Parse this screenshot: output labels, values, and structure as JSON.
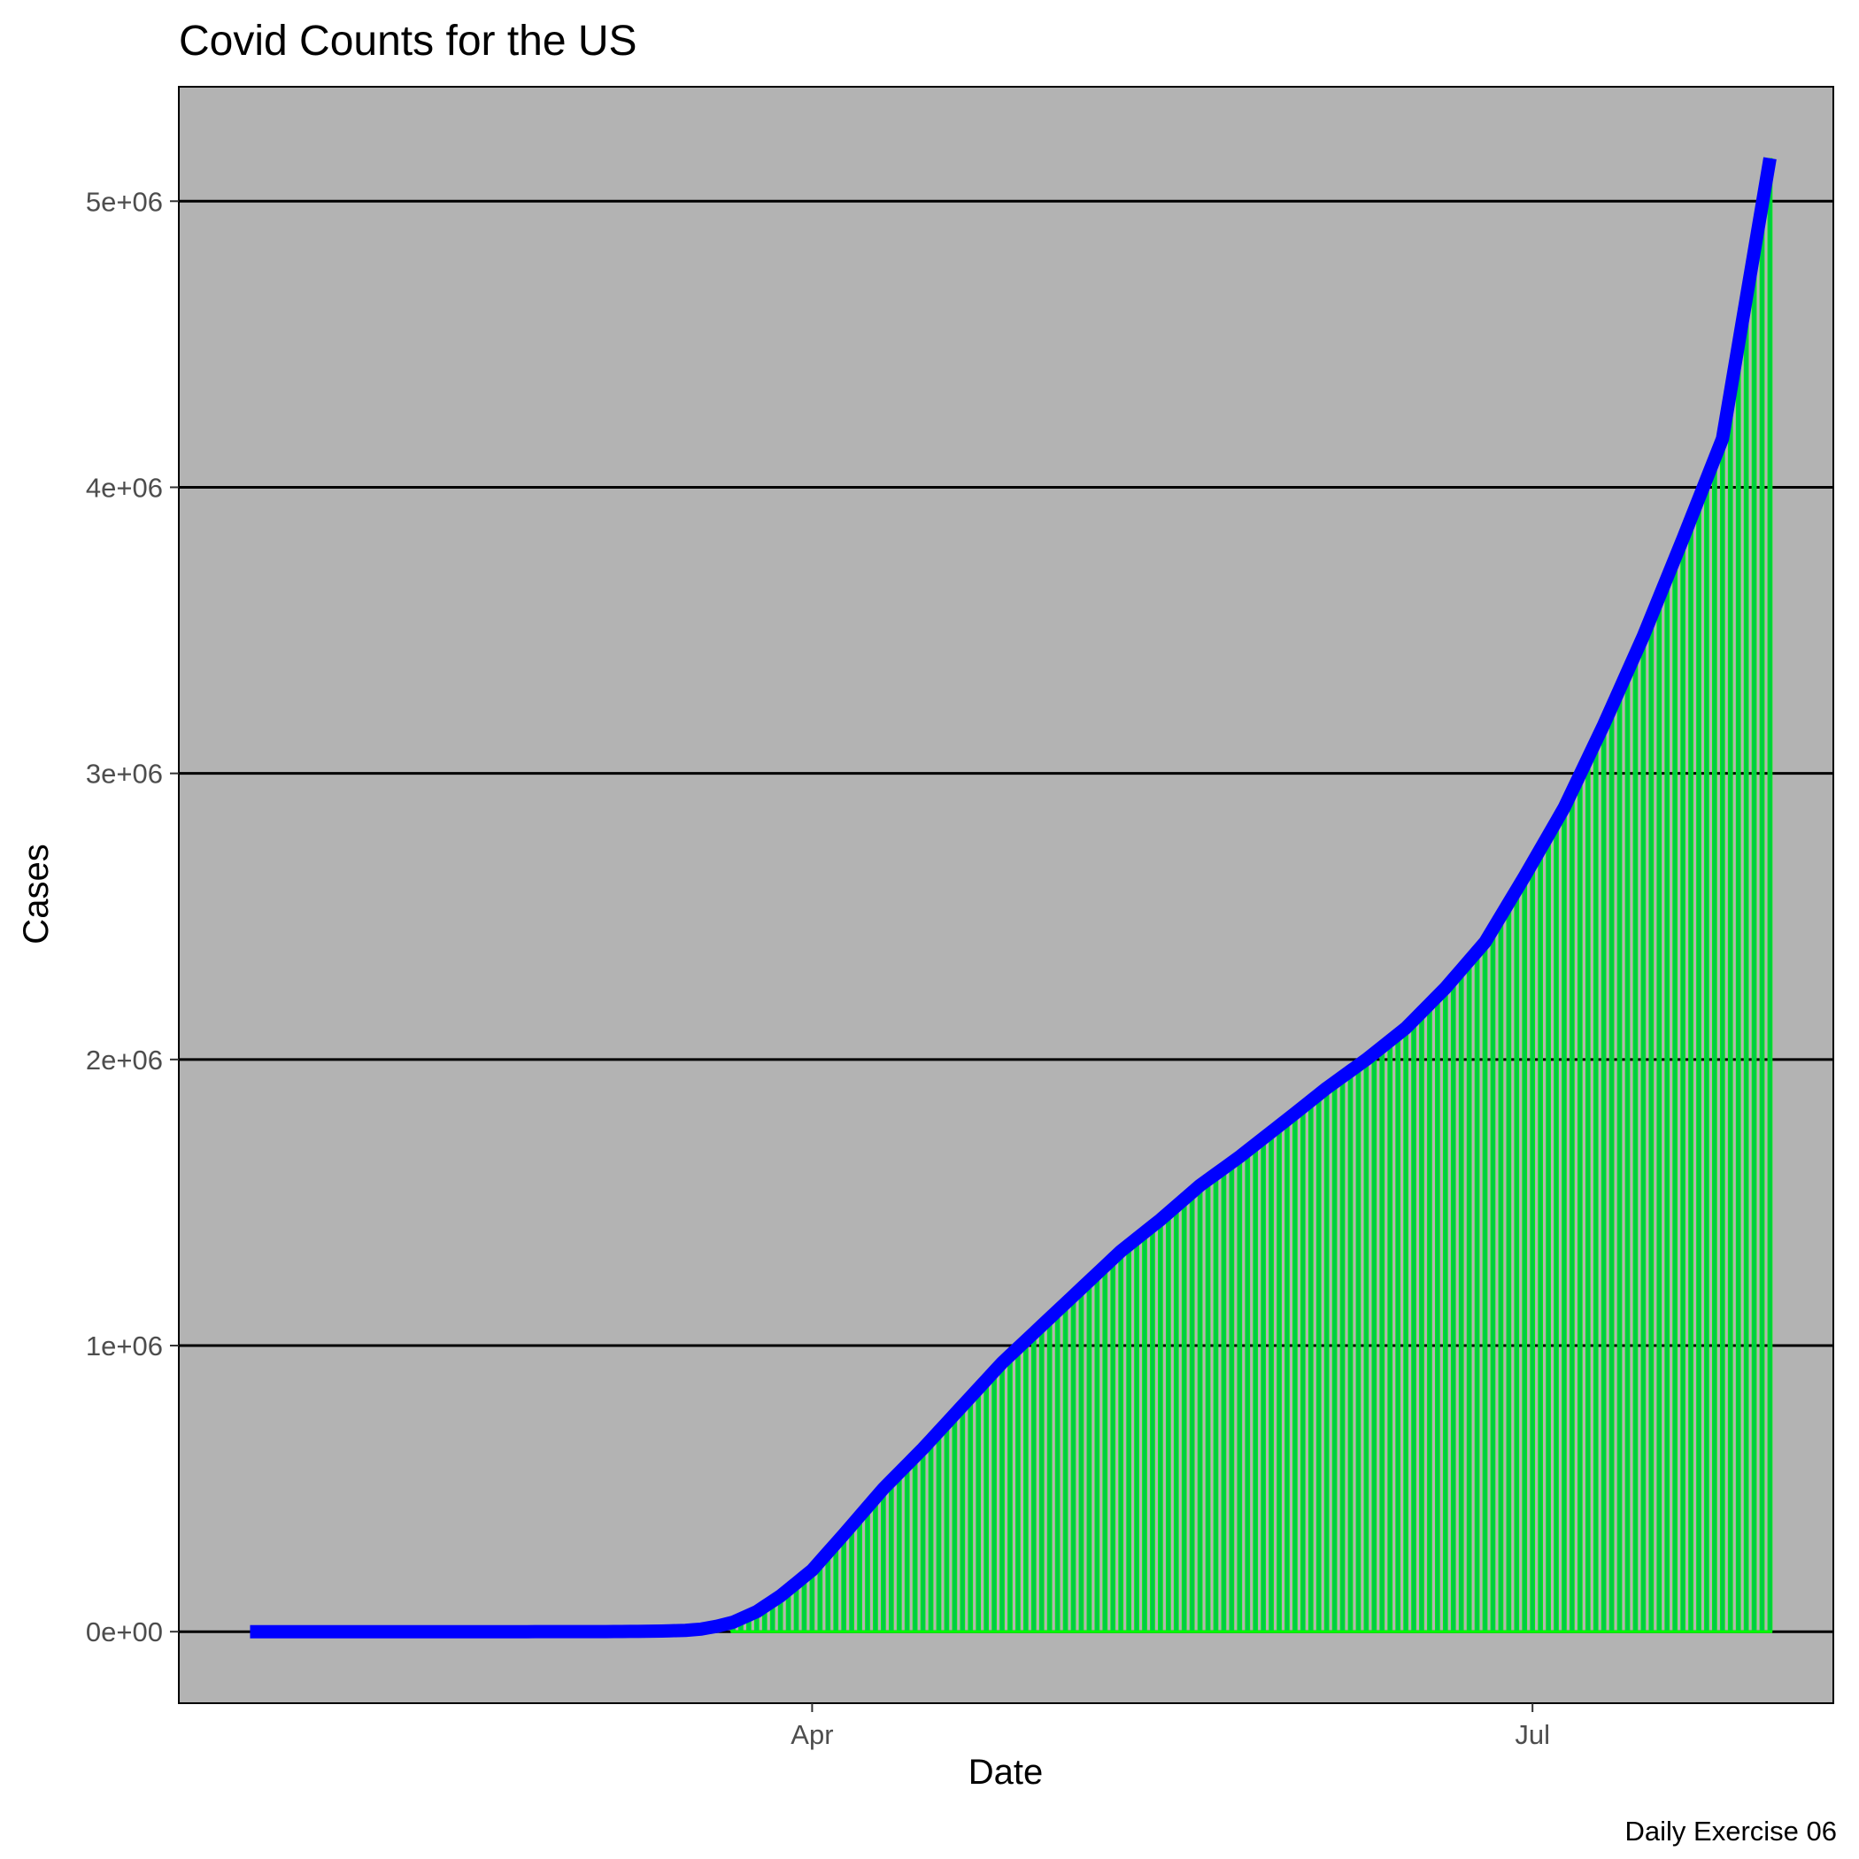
{
  "chart_data": {
    "type": "bar",
    "overlay": "line",
    "title": "Covid Counts for the US",
    "xlabel": "Date",
    "ylabel": "Cases",
    "caption": "Daily Exercise 06",
    "x_start_date": "2020-01-21",
    "x_end_date": "2020-07-31",
    "bar_start_date": "2020-03-22",
    "xlim": [
      "2020-01-12",
      "2020-08-08"
    ],
    "ylim": [
      -250000,
      5400000
    ],
    "x_ticks": [
      {
        "date": "2020-04-01",
        "label": "Apr"
      },
      {
        "date": "2020-07-01",
        "label": "Jul"
      }
    ],
    "y_ticks": [
      {
        "value": 0,
        "label": "0e+00"
      },
      {
        "value": 1000000,
        "label": "1e+06"
      },
      {
        "value": 2000000,
        "label": "2e+06"
      },
      {
        "value": 3000000,
        "label": "3e+06"
      },
      {
        "value": 4000000,
        "label": "4e+06"
      },
      {
        "value": 5000000,
        "label": "5e+06"
      }
    ],
    "gridlines": "horizontal-major",
    "legend": "none",
    "series": [
      {
        "name": "",
        "type": "bar",
        "anchors": [
          [
            "2020-03-22",
            33000
          ],
          [
            "2020-03-25",
            70000
          ],
          [
            "2020-03-28",
            125000
          ],
          [
            "2020-04-01",
            215000
          ],
          [
            "2020-04-05",
            340000
          ],
          [
            "2020-04-10",
            500000
          ],
          [
            "2020-04-15",
            640000
          ],
          [
            "2020-04-20",
            790000
          ],
          [
            "2020-04-25",
            940000
          ],
          [
            "2020-04-30",
            1070000
          ],
          [
            "2020-05-05",
            1200000
          ],
          [
            "2020-05-10",
            1330000
          ],
          [
            "2020-05-15",
            1440000
          ],
          [
            "2020-05-20",
            1560000
          ],
          [
            "2020-05-25",
            1660000
          ],
          [
            "2020-05-31",
            1790000
          ],
          [
            "2020-06-05",
            1900000
          ],
          [
            "2020-06-10",
            2000000
          ],
          [
            "2020-06-15",
            2110000
          ],
          [
            "2020-06-20",
            2250000
          ],
          [
            "2020-06-25",
            2410000
          ],
          [
            "2020-06-30",
            2640000
          ],
          [
            "2020-07-05",
            2880000
          ],
          [
            "2020-07-10",
            3170000
          ],
          [
            "2020-07-15",
            3480000
          ],
          [
            "2020-07-20",
            3820000
          ],
          [
            "2020-07-25",
            4170000
          ],
          [
            "2020-07-31",
            5150000
          ]
        ]
      },
      {
        "name": "",
        "type": "line",
        "anchors": [
          [
            "2020-01-21",
            1
          ],
          [
            "2020-02-15",
            15
          ],
          [
            "2020-03-01",
            75
          ],
          [
            "2020-03-05",
            230
          ],
          [
            "2020-03-10",
            1000
          ],
          [
            "2020-03-13",
            2200
          ],
          [
            "2020-03-16",
            4600
          ],
          [
            "2020-03-18",
            9000
          ],
          [
            "2020-03-20",
            19000
          ],
          [
            "2020-03-22",
            33000
          ],
          [
            "2020-03-25",
            70000
          ],
          [
            "2020-03-28",
            125000
          ],
          [
            "2020-04-01",
            215000
          ],
          [
            "2020-04-05",
            340000
          ],
          [
            "2020-04-10",
            500000
          ],
          [
            "2020-04-15",
            640000
          ],
          [
            "2020-04-20",
            790000
          ],
          [
            "2020-04-25",
            940000
          ],
          [
            "2020-04-30",
            1070000
          ],
          [
            "2020-05-05",
            1200000
          ],
          [
            "2020-05-10",
            1330000
          ],
          [
            "2020-05-15",
            1440000
          ],
          [
            "2020-05-20",
            1560000
          ],
          [
            "2020-05-25",
            1660000
          ],
          [
            "2020-05-31",
            1790000
          ],
          [
            "2020-06-05",
            1900000
          ],
          [
            "2020-06-10",
            2000000
          ],
          [
            "2020-06-15",
            2110000
          ],
          [
            "2020-06-20",
            2250000
          ],
          [
            "2020-06-25",
            2410000
          ],
          [
            "2020-06-30",
            2640000
          ],
          [
            "2020-07-05",
            2880000
          ],
          [
            "2020-07-10",
            3170000
          ],
          [
            "2020-07-15",
            3480000
          ],
          [
            "2020-07-20",
            3820000
          ],
          [
            "2020-07-25",
            4170000
          ],
          [
            "2020-07-31",
            5150000
          ]
        ]
      }
    ],
    "colors": {
      "panel_background": "#b3b3b3",
      "grid": "#000000",
      "bar_fill": "#00cc44",
      "bar_outline": "#00ff00",
      "line": "#0000ff",
      "tick_text": "#4d4d4d",
      "text": "#000000"
    }
  }
}
